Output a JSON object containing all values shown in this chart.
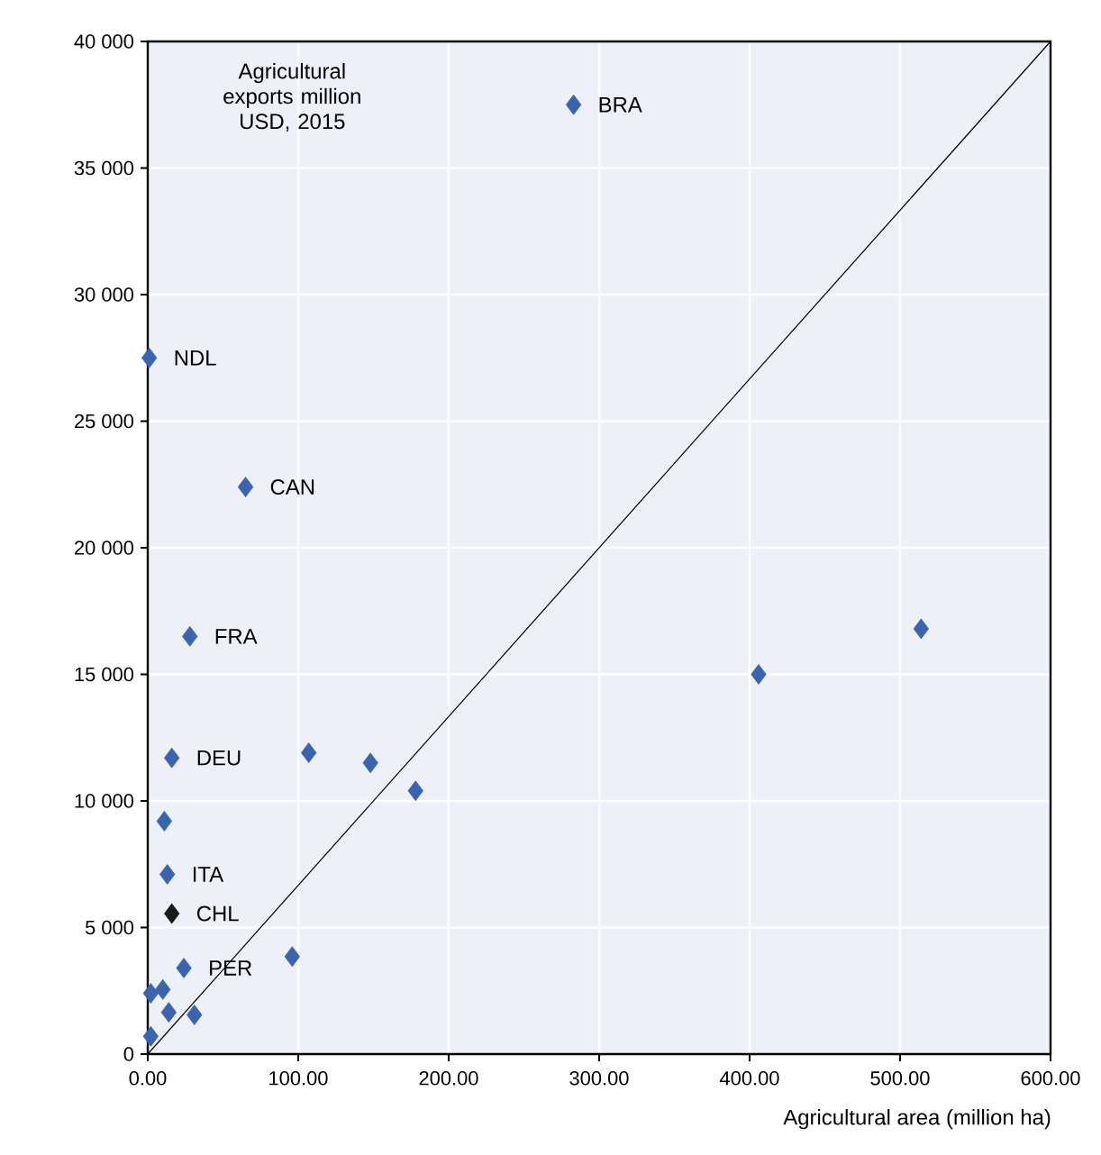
{
  "chart_data": {
    "type": "scatter",
    "ylabel": "Agricultural exports million USD, 2015",
    "xlabel": "Agricultural area (million ha)",
    "xlim": [
      0,
      600
    ],
    "ylim": [
      0,
      40000
    ],
    "xticks": [
      {
        "value": 0,
        "label": "0.00"
      },
      {
        "value": 100,
        "label": "100.00"
      },
      {
        "value": 200,
        "label": "200.00"
      },
      {
        "value": 300,
        "label": "300.00"
      },
      {
        "value": 400,
        "label": "400.00"
      },
      {
        "value": 500,
        "label": "500.00"
      },
      {
        "value": 600,
        "label": "600.00"
      }
    ],
    "yticks": [
      0,
      {
        "value": 5000,
        "label": "5 000"
      },
      {
        "value": 10000,
        "label": "10 000"
      },
      {
        "value": 15000,
        "label": "15 000"
      },
      {
        "value": 20000,
        "label": "20 000"
      },
      {
        "value": 25000,
        "label": "25 000"
      },
      {
        "value": 30000,
        "label": "30 000"
      },
      {
        "value": 35000,
        "label": "35 000"
      },
      {
        "value": 40000,
        "label": "40 000"
      }
    ],
    "grid": true,
    "marker": "diamond",
    "series": [
      {
        "x": [
          283,
          1,
          65,
          28,
          16,
          107,
          148,
          178,
          406,
          514,
          11,
          13,
          16,
          96,
          24,
          10,
          2,
          14,
          31,
          2
        ],
        "values": [
          37500,
          27500,
          22400,
          16500,
          11700,
          11900,
          11500,
          10400,
          15000,
          16800,
          9200,
          7100,
          5550,
          3850,
          3400,
          2550,
          2400,
          1650,
          1550,
          700
        ],
        "colors": [
          "#3a64b0",
          "#3a64b0",
          "#3a64b0",
          "#3a64b0",
          "#3a64b0",
          "#3a64b0",
          "#3a64b0",
          "#3a64b0",
          "#3a64b0",
          "#3a64b0",
          "#3a64b0",
          "#3a64b0",
          "#1a1a1a",
          "#3a64b0",
          "#3a64b0",
          "#3a64b0",
          "#3a64b0",
          "#3a64b0",
          "#3a64b0",
          "#3a64b0"
        ]
      },
      {
        "type": "line",
        "x": [
          0,
          600
        ],
        "values": [
          0,
          40000
        ],
        "color": "#000000",
        "marker": "none"
      }
    ],
    "annotations": [
      {
        "text": "BRA",
        "x": 283,
        "y": 37500
      },
      {
        "text": "NDL",
        "x": 1,
        "y": 27500
      },
      {
        "text": "CAN",
        "x": 65,
        "y": 22400
      },
      {
        "text": "FRA",
        "x": 28,
        "y": 16500
      },
      {
        "text": "DEU",
        "x": 16,
        "y": 11700
      },
      {
        "text": "ITA",
        "x": 13,
        "y": 7100
      },
      {
        "text": "CHL",
        "x": 16,
        "y": 5550
      },
      {
        "text": "PER",
        "x": 24,
        "y": 3400
      }
    ]
  }
}
